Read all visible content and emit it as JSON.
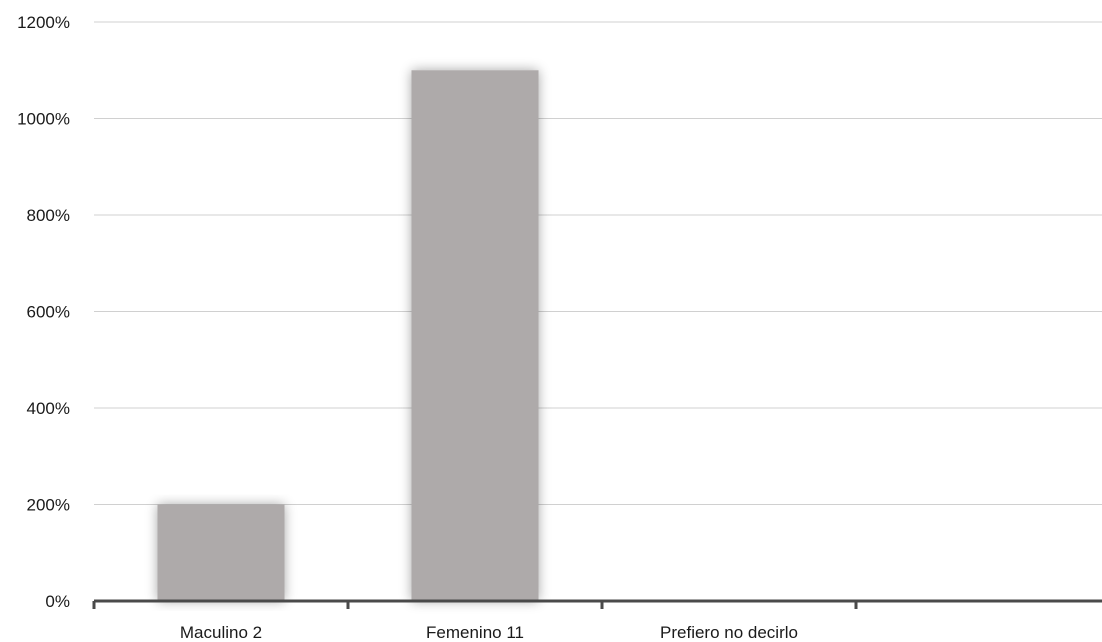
{
  "chart_data": {
    "type": "bar",
    "categories": [
      "Maculino 2",
      "Femenino 11",
      "Prefiero no decirlo"
    ],
    "values": [
      200,
      1100,
      0
    ],
    "y_ticks": [
      "0%",
      "200%",
      "400%",
      "600%",
      "800%",
      "1000%",
      "1200%"
    ],
    "ylim": [
      0,
      1200
    ],
    "grid": true,
    "legend": "none",
    "bar_color": "#aeaaaa",
    "axis_color": "#4a4a4a",
    "grid_color": "#d0d0d0"
  }
}
